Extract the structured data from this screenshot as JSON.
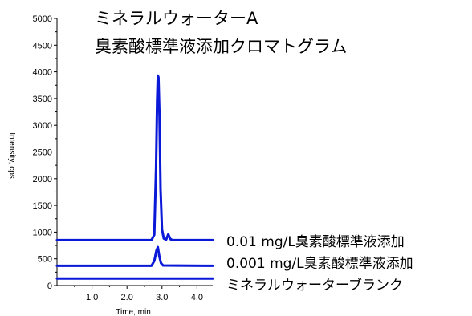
{
  "chart_data": {
    "type": "line",
    "title_lines": [
      "ミネラルウォーターA",
      "臭素酸標準液添加クロマトグラム"
    ],
    "xlabel": "Time, min",
    "ylabel": "Intensity, cps",
    "xlim": [
      0.0,
      4.45
    ],
    "ylim": [
      0,
      5000
    ],
    "x_ticks": [
      "1.0",
      "2.0",
      "3.0",
      "4.0"
    ],
    "x_tick_values": [
      1.0,
      2.0,
      3.0,
      4.0
    ],
    "y_ticks": [
      "0",
      "500",
      "1000",
      "1500",
      "2000",
      "2500",
      "3000",
      "3500",
      "4000",
      "4500",
      "5000"
    ],
    "y_tick_values": [
      0,
      500,
      1000,
      1500,
      2000,
      2500,
      3000,
      3500,
      4000,
      4500,
      5000
    ],
    "line_color": "#0a18d8",
    "series": [
      {
        "name": "0.01 mg/L臭素酸標準液添加",
        "x": [
          0.0,
          2.7,
          2.78,
          2.83,
          2.86,
          2.88,
          2.9,
          2.93,
          2.96,
          3.0,
          3.05,
          3.12,
          3.18,
          3.24,
          3.3,
          4.45
        ],
        "y": [
          850,
          850,
          950,
          2200,
          3450,
          3930,
          3900,
          3150,
          1800,
          1050,
          880,
          860,
          960,
          870,
          850,
          850
        ]
      },
      {
        "name": "0.001 mg/L臭素酸標準液添加",
        "x": [
          0.0,
          2.7,
          2.78,
          2.84,
          2.88,
          2.92,
          2.97,
          3.03,
          4.45
        ],
        "y": [
          370,
          370,
          460,
          650,
          720,
          560,
          420,
          375,
          370
        ]
      },
      {
        "name": "ミネラルウォーターブランク",
        "x": [
          0.0,
          4.45
        ],
        "y": [
          130,
          130
        ]
      }
    ]
  }
}
